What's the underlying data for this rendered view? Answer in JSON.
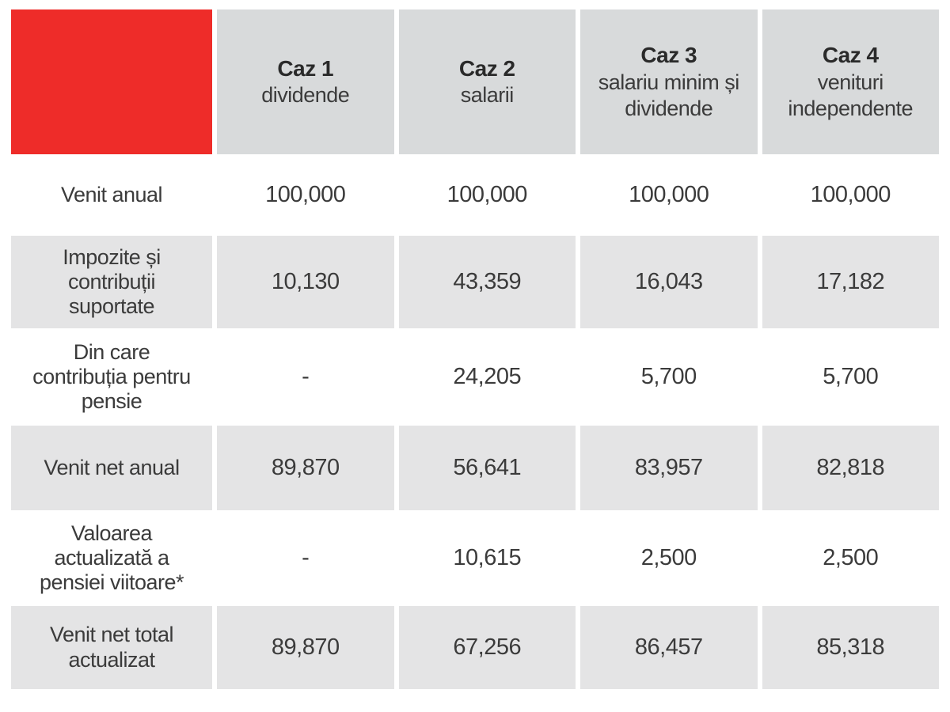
{
  "table": {
    "corner_color": "#ee2c29",
    "header_bg": "#d8dadb",
    "shaded_row_bg": "#e4e4e5",
    "text_color": "#3b3b3b",
    "columns": [
      {
        "title": "Caz 1",
        "subtitle": "dividende"
      },
      {
        "title": "Caz 2",
        "subtitle": "salarii"
      },
      {
        "title": "Caz 3",
        "subtitle": "salariu minim și dividende"
      },
      {
        "title": "Caz 4",
        "subtitle": "venituri independente"
      }
    ],
    "rows": [
      {
        "label": "Venit anual",
        "values": [
          "100,000",
          "100,000",
          "100,000",
          "100,000"
        ]
      },
      {
        "label": "Impozite și contribuții suportate",
        "values": [
          "10,130",
          "43,359",
          "16,043",
          "17,182"
        ]
      },
      {
        "label": "Din care contribuția pentru pensie",
        "values": [
          "-",
          "24,205",
          "5,700",
          "5,700"
        ]
      },
      {
        "label": "Venit net anual",
        "values": [
          "89,870",
          "56,641",
          "83,957",
          "82,818"
        ]
      },
      {
        "label": "Valoarea actualizată a pensiei viitoare*",
        "values": [
          "-",
          "10,615",
          "2,500",
          "2,500"
        ]
      },
      {
        "label": "Venit net total actualizat",
        "values": [
          "89,870",
          "67,256",
          "86,457",
          "85,318"
        ]
      }
    ]
  },
  "chart_data": {
    "type": "table",
    "title": "",
    "columns": [
      "",
      "Caz 1 dividende",
      "Caz 2 salarii",
      "Caz 3 salariu minim și dividende",
      "Caz 4 venituri independente"
    ],
    "rows": [
      [
        "Venit anual",
        100000,
        100000,
        100000,
        100000
      ],
      [
        "Impozite și contribuții suportate",
        10130,
        43359,
        16043,
        17182
      ],
      [
        "Din care contribuția pentru pensie",
        null,
        24205,
        5700,
        5700
      ],
      [
        "Venit net anual",
        89870,
        56641,
        83957,
        82818
      ],
      [
        "Valoarea actualizată a pensiei viitoare*",
        null,
        10615,
        2500,
        2500
      ],
      [
        "Venit net total actualizat",
        89870,
        67256,
        86457,
        85318
      ]
    ]
  }
}
